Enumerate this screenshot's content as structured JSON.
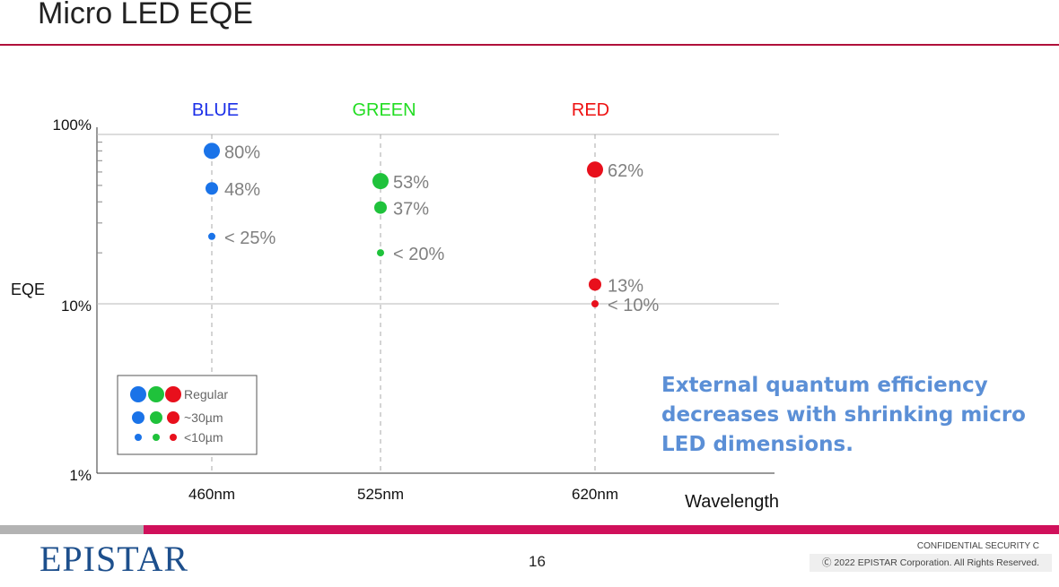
{
  "slide": {
    "title": "Micro LED EQE",
    "message": "External quantum efficiency decreases with shrinking micro LED dimensions.",
    "page_number": "16",
    "confidential": "CONFIDENTIAL SECURITY C",
    "copyright": "Ⓒ 2022 EPISTAR Corporation.  All Rights Reserved.",
    "logo": "EPISTAR"
  },
  "colors": {
    "blue": "#1a73e8",
    "green": "#1fc23b",
    "red": "#e8101c",
    "grid": "#b8b8b8",
    "text_grey": "#808080"
  },
  "chart_data": {
    "type": "scatter",
    "ylabel": "EQE",
    "xlabel": "Wavelength",
    "yscale": "log",
    "ylim": [
      0.01,
      1
    ],
    "y_ticks": [
      "100%",
      "10%",
      "1%"
    ],
    "categories": [
      "460nm",
      "525nm",
      "620nm"
    ],
    "column_headers": [
      {
        "label": "BLUE",
        "color": "#1a2ee8"
      },
      {
        "label": "GREEN",
        "color": "#22dd22"
      },
      {
        "label": "RED",
        "color": "#ee1111"
      }
    ],
    "series": [
      {
        "name": "Regular",
        "color_by_category": true,
        "values": [
          0.8,
          0.53,
          0.62
        ],
        "labels": [
          "80%",
          "53%",
          "62%"
        ],
        "size": "large"
      },
      {
        "name": "~30µm",
        "color_by_category": true,
        "values": [
          0.48,
          0.37,
          0.13
        ],
        "labels": [
          "48%",
          "37%",
          "13%"
        ],
        "size": "medium"
      },
      {
        "name": "<10µm",
        "color_by_category": true,
        "values": [
          0.25,
          0.2,
          0.1
        ],
        "labels": [
          "< 25%",
          "< 20%",
          "< 10%"
        ],
        "size": "small"
      }
    ],
    "legend": {
      "placement": "bottom-left"
    }
  }
}
